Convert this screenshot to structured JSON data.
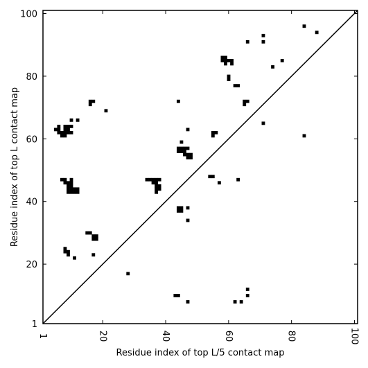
{
  "chart_data": {
    "type": "heatmap",
    "title": "",
    "xlabel": "Residue index of top L/5 contact map",
    "ylabel": "Residue index of top L contact map",
    "xlim": [
      1,
      101
    ],
    "ylim": [
      1,
      101
    ],
    "xticks": [
      {
        "value": 1,
        "label": "1"
      },
      {
        "value": 20,
        "label": "20"
      },
      {
        "value": 40,
        "label": "40"
      },
      {
        "value": 60,
        "label": "60"
      },
      {
        "value": 80,
        "label": "80"
      },
      {
        "value": 100,
        "label": "100"
      }
    ],
    "yticks": [
      {
        "value": 1,
        "label": "1"
      },
      {
        "value": 20,
        "label": "20"
      },
      {
        "value": 40,
        "label": "40"
      },
      {
        "value": 60,
        "label": "60"
      },
      {
        "value": 80,
        "label": "80"
      },
      {
        "value": 100,
        "label": "100"
      }
    ],
    "diagonal": true,
    "cell_color": "#000000",
    "background": "#ffffff",
    "cells": [
      [
        5,
        63
      ],
      [
        6,
        63
      ],
      [
        6,
        62
      ],
      [
        7,
        62
      ],
      [
        7,
        61
      ],
      [
        8,
        61
      ],
      [
        8,
        62
      ],
      [
        8,
        63
      ],
      [
        9,
        62
      ],
      [
        9,
        63
      ],
      [
        10,
        62
      ],
      [
        6,
        64
      ],
      [
        8,
        64
      ],
      [
        9,
        64
      ],
      [
        10,
        64
      ],
      [
        10,
        66
      ],
      [
        12,
        66
      ],
      [
        7,
        47
      ],
      [
        8,
        47
      ],
      [
        8,
        46
      ],
      [
        9,
        46
      ],
      [
        9,
        45
      ],
      [
        10,
        45
      ],
      [
        9,
        44
      ],
      [
        10,
        44
      ],
      [
        11,
        44
      ],
      [
        12,
        44
      ],
      [
        9,
        43
      ],
      [
        10,
        43
      ],
      [
        11,
        43
      ],
      [
        12,
        43
      ],
      [
        10,
        47
      ],
      [
        10,
        46
      ],
      [
        8,
        25
      ],
      [
        8,
        24
      ],
      [
        9,
        24
      ],
      [
        9,
        23
      ],
      [
        11,
        22
      ],
      [
        15,
        30
      ],
      [
        16,
        30
      ],
      [
        17,
        29
      ],
      [
        18,
        29
      ],
      [
        17,
        28
      ],
      [
        18,
        28
      ],
      [
        17,
        23
      ],
      [
        16,
        72
      ],
      [
        17,
        72
      ],
      [
        16,
        71
      ],
      [
        21,
        69
      ],
      [
        28,
        17
      ],
      [
        34,
        47
      ],
      [
        35,
        47
      ],
      [
        36,
        47
      ],
      [
        37,
        47
      ],
      [
        38,
        47
      ],
      [
        36,
        46
      ],
      [
        37,
        46
      ],
      [
        37,
        45
      ],
      [
        38,
        45
      ],
      [
        37,
        44
      ],
      [
        38,
        44
      ],
      [
        37,
        43
      ],
      [
        44,
        38
      ],
      [
        45,
        38
      ],
      [
        44,
        37
      ],
      [
        45,
        37
      ],
      [
        47,
        38
      ],
      [
        47,
        34
      ],
      [
        43,
        10
      ],
      [
        44,
        10
      ],
      [
        47,
        8
      ],
      [
        44,
        72
      ],
      [
        44,
        57
      ],
      [
        45,
        57
      ],
      [
        46,
        57
      ],
      [
        47,
        57
      ],
      [
        44,
        56
      ],
      [
        45,
        56
      ],
      [
        46,
        56
      ],
      [
        46,
        55
      ],
      [
        47,
        55
      ],
      [
        48,
        55
      ],
      [
        47,
        54
      ],
      [
        48,
        54
      ],
      [
        45,
        59
      ],
      [
        47,
        63
      ],
      [
        54,
        48
      ],
      [
        55,
        48
      ],
      [
        57,
        46
      ],
      [
        55,
        62
      ],
      [
        56,
        62
      ],
      [
        55,
        61
      ],
      [
        58,
        86
      ],
      [
        59,
        86
      ],
      [
        58,
        85
      ],
      [
        59,
        85
      ],
      [
        60,
        85
      ],
      [
        61,
        85
      ],
      [
        59,
        84
      ],
      [
        61,
        84
      ],
      [
        60,
        80
      ],
      [
        60,
        79
      ],
      [
        62,
        77
      ],
      [
        63,
        77
      ],
      [
        63,
        47
      ],
      [
        65,
        72
      ],
      [
        66,
        72
      ],
      [
        65,
        71
      ],
      [
        66,
        91
      ],
      [
        71,
        93
      ],
      [
        71,
        91
      ],
      [
        71,
        65
      ],
      [
        74,
        83
      ],
      [
        77,
        85
      ],
      [
        84,
        96
      ],
      [
        84,
        61
      ],
      [
        88,
        94
      ],
      [
        62,
        8
      ],
      [
        64,
        8
      ],
      [
        66,
        10
      ],
      [
        66,
        12
      ]
    ]
  }
}
